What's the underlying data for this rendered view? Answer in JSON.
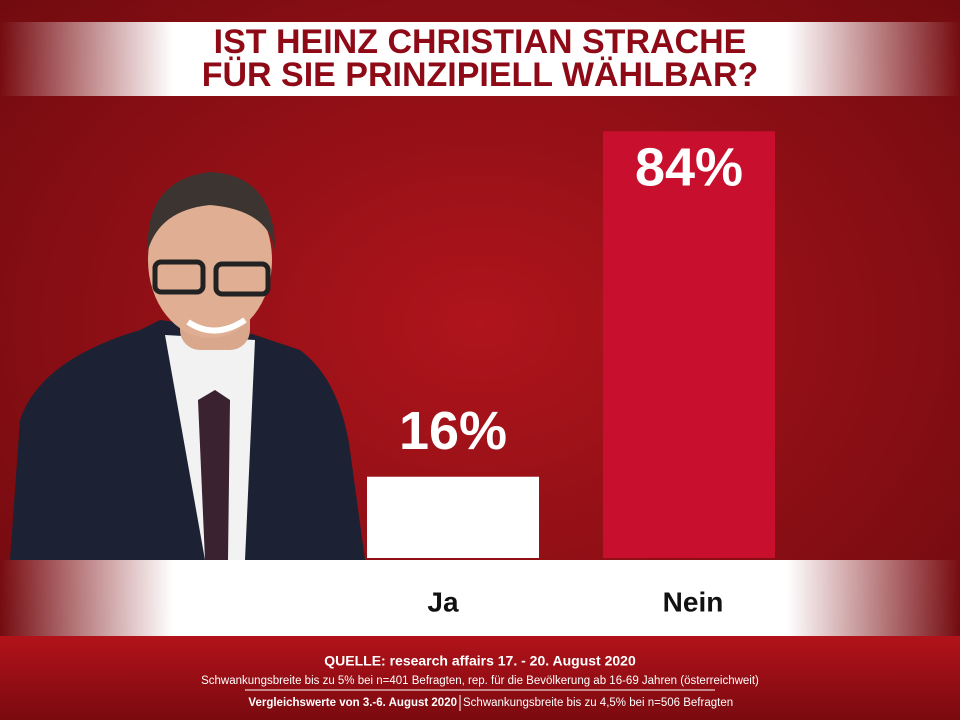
{
  "chart_data": {
    "type": "bar",
    "title": [
      "IST HEINZ CHRISTIAN STRACHE",
      "FÜR SIE PRINZIPIELL WÄHLBAR?"
    ],
    "categories": [
      "Ja",
      "Nein"
    ],
    "values": [
      16,
      84
    ],
    "value_labels": [
      "16%",
      "84%"
    ],
    "colors": [
      "#ffffff",
      "#c8102e"
    ],
    "source": "QUELLE: research affairs 17. - 20. August 2020",
    "source_note": "Schwankungsbreite bis zu 5% bei n=401 Befragten, rep. für die Bevölkerung ab 16-69 Jahren (österreichweit)",
    "comparison": "Vergleichswerte von 3.-6. August 2020",
    "comparison_note": "Schwankungsbreite bis zu 4,5% bei n=506 Befragten"
  }
}
